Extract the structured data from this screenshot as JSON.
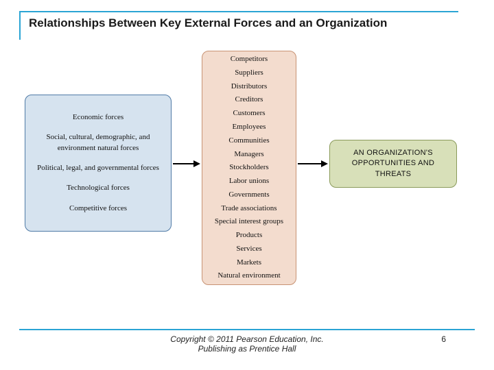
{
  "title": "Relationships Between Key External Forces and an Organization",
  "boxes": {
    "left": {
      "bg": "#d6e3ef",
      "border": "#4f7aa6",
      "items": [
        "Economic forces",
        "Social, cultural, demographic, and environment natural forces",
        "Political, legal, and governmental forces",
        "Technological forces",
        "Competitive forces"
      ]
    },
    "middle": {
      "bg": "#f3dcce",
      "border": "#c79273",
      "items": [
        "Competitors",
        "Suppliers",
        "Distributors",
        "Creditors",
        "Customers",
        "Employees",
        "Communities",
        "Managers",
        "Stockholders",
        "Labor unions",
        "Governments",
        "Trade associations",
        "Special interest groups",
        "Products",
        "Services",
        "Markets",
        "Natural environment"
      ]
    },
    "right": {
      "bg": "#d8e0b9",
      "border": "#8a9a5a",
      "lines": [
        "AN ORGANIZATION'S",
        "OPPORTUNITIES AND",
        "THREATS"
      ]
    }
  },
  "footer": {
    "line1": "Copyright © 2011 Pearson Education, Inc.",
    "line2": "Publishing as Prentice Hall"
  },
  "page": "6",
  "colors": {
    "rule": "#2aa4d4"
  }
}
